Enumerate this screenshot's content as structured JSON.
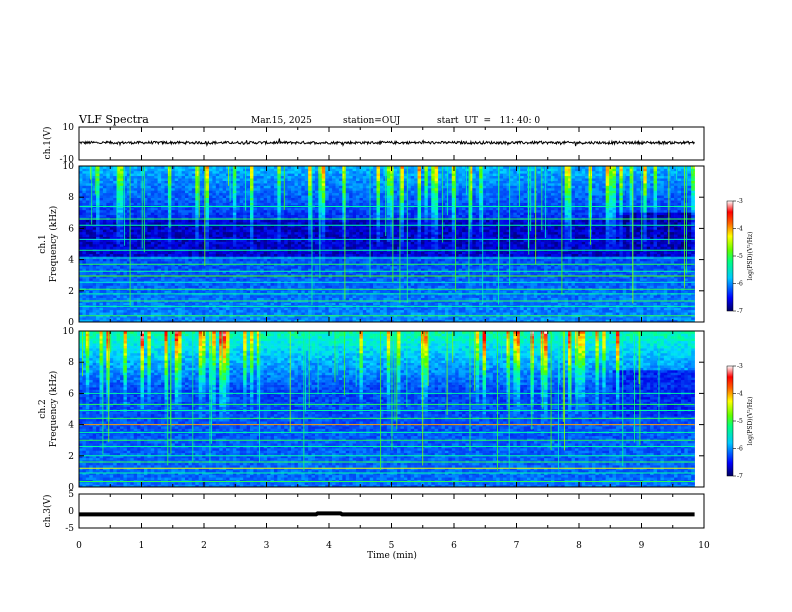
{
  "header": {
    "title": "VLF Spectra",
    "date": "Mar.15, 2025",
    "station": "station=OUJ",
    "start": "start  UT  =   11: 40: 0"
  },
  "colors": {
    "spectrogram": [
      "#00007a",
      "#0000e6",
      "#0050ff",
      "#00c8ff",
      "#00ffb0",
      "#40ff40",
      "#ffff00",
      "#ff8000",
      "#ff0000",
      "#ffffff"
    ]
  },
  "chart_data": [
    {
      "type": "line",
      "id": "ch1",
      "ylabel": "ch.1(V)",
      "ylim": [
        -10,
        10
      ],
      "yticks": [
        "10",
        "-10"
      ],
      "baseline": 0.5,
      "color": "#000000"
    },
    {
      "type": "heatmap",
      "id": "ch1-spec",
      "ylabel_top": "ch.1",
      "ylabel": "Frequency (kHz)",
      "ylim": [
        0,
        10
      ],
      "yticks": [
        "0",
        "2",
        "4",
        "6",
        "8",
        "10"
      ],
      "xlim": [
        0,
        10
      ],
      "colorbar": {
        "label": "log(PSD)(V²/Hz)",
        "range": [
          -7,
          -3
        ],
        "ticks": [
          "-3",
          "-4",
          "-5",
          "-6",
          "-7"
        ]
      },
      "transition_min": 8.65
    },
    {
      "type": "heatmap",
      "id": "ch2-spec",
      "ylabel_top": "ch.2",
      "ylabel": "Frequency (kHz)",
      "ylim": [
        0,
        10
      ],
      "yticks": [
        "0",
        "2",
        "4",
        "6",
        "8",
        "10"
      ],
      "xlim": [
        0,
        10
      ],
      "colorbar": {
        "label": "log(PSD)(V²/Hz)",
        "range": [
          -7,
          -3
        ],
        "ticks": [
          "-3",
          "-4",
          "-5",
          "-6",
          "-7"
        ]
      },
      "transition_min": 8.55
    },
    {
      "type": "line",
      "id": "ch3",
      "ylabel": "ch.3(V)",
      "ylim": [
        -5,
        5
      ],
      "yticks": [
        "5",
        "0",
        "-5"
      ],
      "baseline": -1,
      "color": "#000000"
    }
  ],
  "xaxis": {
    "label": "Time (min)",
    "ticks": [
      "0",
      "1",
      "2",
      "3",
      "4",
      "5",
      "6",
      "7",
      "8",
      "9",
      "10"
    ],
    "data_end": 9.85
  }
}
